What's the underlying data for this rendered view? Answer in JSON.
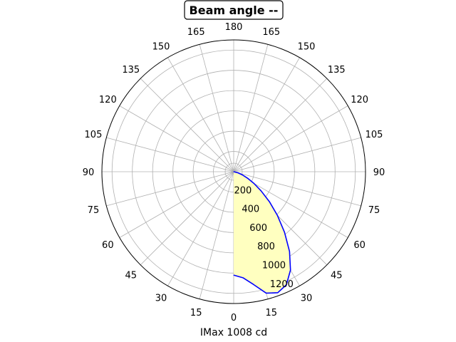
{
  "chart_data": {
    "type": "polar-line",
    "title": "Beam angle --",
    "xlabel": "IMax 1008 cd",
    "angle_ticks": {
      "left": [
        "180",
        "165",
        "150",
        "135",
        "120",
        "105",
        "90",
        "75",
        "60",
        "45",
        "30",
        "15",
        "0"
      ],
      "right": [
        "165",
        "150",
        "135",
        "120",
        "105",
        "90",
        "75",
        "60",
        "45",
        "30",
        "15"
      ]
    },
    "radial_ticks": [
      "200",
      "400",
      "600",
      "800",
      "1000",
      "1200"
    ],
    "rlim": [
      0,
      1300
    ],
    "grid": true,
    "series": [
      {
        "color": "#0000ff",
        "fill": "#ffffc0",
        "angle_deg": [
          0,
          5,
          10,
          15,
          20,
          25,
          30,
          35,
          40,
          45,
          50,
          55,
          60,
          65,
          70,
          75,
          80
        ],
        "values": [
          1020,
          1050,
          1130,
          1240,
          1270,
          1230,
          1120,
          960,
          780,
          610,
          460,
          330,
          230,
          150,
          90,
          45,
          0
        ]
      }
    ],
    "colors": {
      "line": "#0000ff",
      "fill": "#ffffc0",
      "grid": "#b0b0b0"
    }
  }
}
